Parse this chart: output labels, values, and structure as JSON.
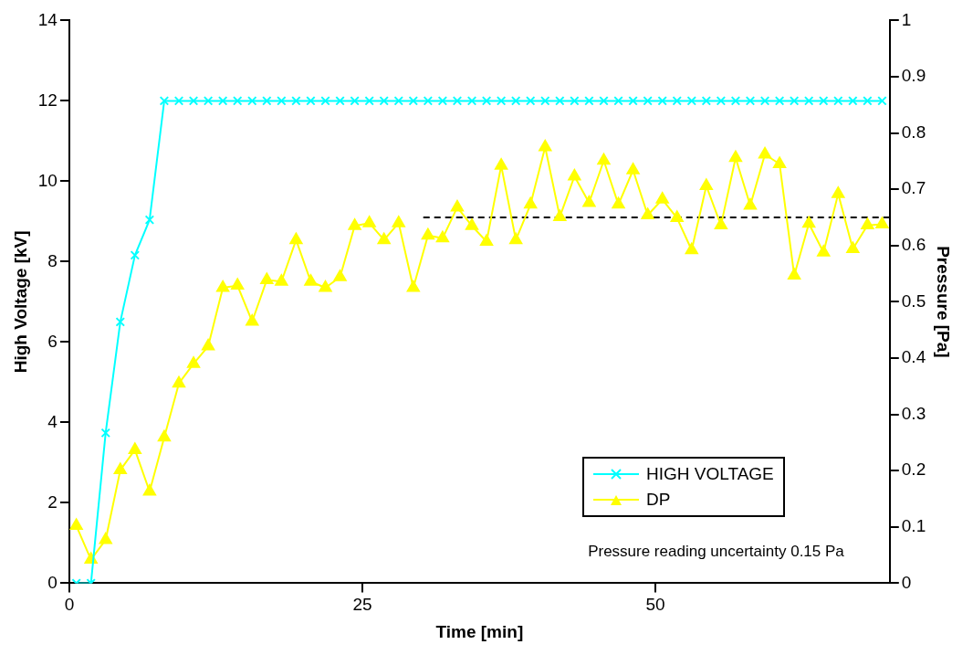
{
  "chart_data": {
    "type": "line",
    "xlabel": "Time [min]",
    "ylabel": "High Voltage [kV]",
    "y2label": "Pressure [Pa]",
    "x": [
      0.6,
      1.85,
      3.1,
      4.35,
      5.6,
      6.85,
      8.1,
      9.35,
      10.6,
      11.85,
      13.1,
      14.35,
      15.6,
      16.85,
      18.1,
      19.35,
      20.6,
      21.85,
      23.1,
      24.35,
      25.6,
      26.85,
      28.1,
      29.35,
      30.6,
      31.85,
      33.1,
      34.35,
      35.6,
      36.85,
      38.1,
      39.35,
      40.6,
      41.85,
      43.1,
      44.35,
      45.6,
      46.85,
      48.1,
      49.35,
      50.6,
      51.85,
      53.1,
      54.35,
      55.6,
      56.85,
      58.1,
      59.35,
      60.6,
      61.85,
      63.1,
      64.35,
      65.6,
      66.85,
      68.1,
      69.35
    ],
    "series": [
      {
        "name": "HIGH VOLTAGE",
        "color": "#00ffff",
        "marker": "cross",
        "values": [
          0,
          0,
          3.74,
          6.5,
          8.16,
          9.04,
          12,
          12,
          12,
          12,
          12,
          12,
          12,
          12,
          12,
          12,
          12,
          12,
          12,
          12,
          12,
          12,
          12,
          12,
          12,
          12,
          12,
          12,
          12,
          12,
          12,
          12,
          12,
          12,
          12,
          12,
          12,
          12,
          12,
          12,
          12,
          12,
          12,
          12,
          12,
          12,
          12,
          12,
          12,
          12,
          12,
          12,
          12,
          12,
          12,
          12
        ]
      },
      {
        "name": "DP",
        "color": "#ffff00",
        "marker": "triangle",
        "axis": "y2",
        "values": [
          0.102,
          0.042,
          0.077,
          0.201,
          0.237,
          0.163,
          0.259,
          0.355,
          0.39,
          0.421,
          0.525,
          0.529,
          0.465,
          0.539,
          0.536,
          0.61,
          0.536,
          0.525,
          0.544,
          0.635,
          0.64,
          0.61,
          0.64,
          0.525,
          0.618,
          0.613,
          0.668,
          0.635,
          0.607,
          0.742,
          0.61,
          0.673,
          0.775,
          0.651,
          0.723,
          0.676,
          0.751,
          0.673,
          0.734,
          0.654,
          0.682,
          0.649,
          0.592,
          0.706,
          0.636,
          0.756,
          0.671,
          0.762,
          0.745,
          0.547,
          0.639,
          0.588,
          0.692,
          0.594,
          0.636,
          0.638
        ]
      },
      {
        "color": "#000000",
        "marker": "none",
        "line_style": "dashed",
        "axis": "y2",
        "x": [
          30.2,
          70
        ],
        "values": [
          0.65,
          0.65
        ]
      }
    ],
    "xlim": [
      0,
      70
    ],
    "xticks": [
      0,
      25,
      50
    ],
    "ylim": [
      0,
      14
    ],
    "yticks": [
      0,
      2,
      4,
      6,
      8,
      10,
      12,
      14
    ],
    "y2lim": [
      0,
      1
    ],
    "y2ticks": [
      0,
      0.1,
      0.2,
      0.3,
      0.4,
      0.5,
      0.6,
      0.7,
      0.8,
      0.9,
      1
    ],
    "grid": false,
    "legend": "bottom right",
    "annotations": [
      "Pressure reading uncertainty 0.15 Pa"
    ]
  }
}
